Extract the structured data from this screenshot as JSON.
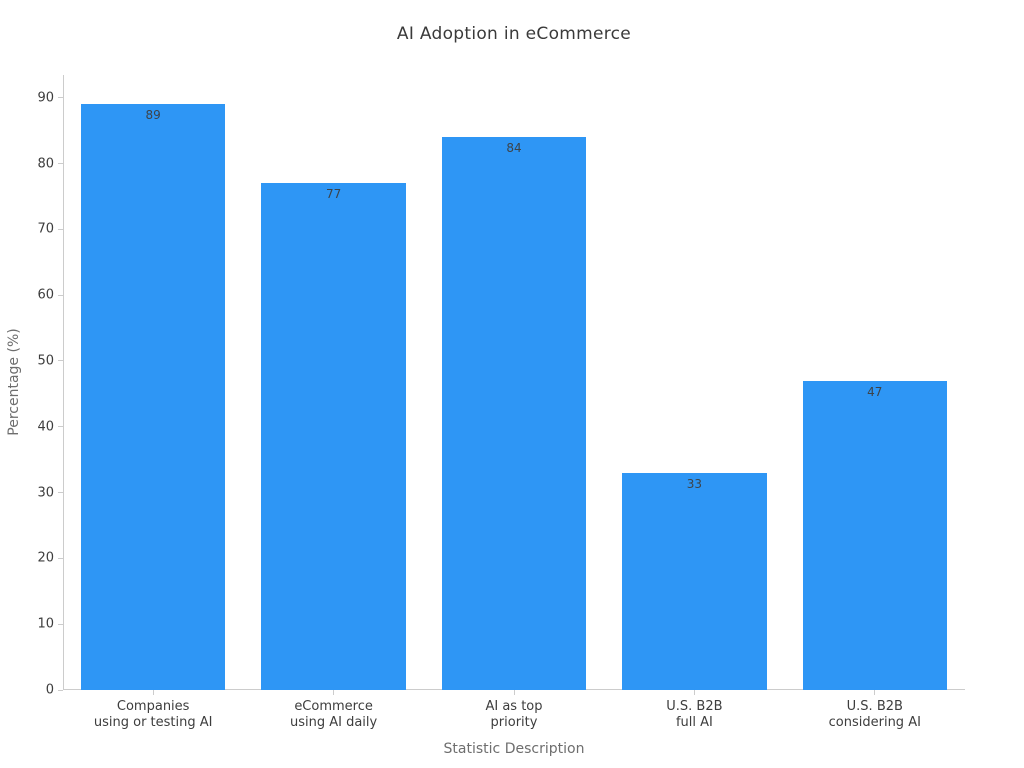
{
  "title": "AI Adoption in eCommerce",
  "colors": {
    "bar": "#2e96f5",
    "spine": "#cccccc",
    "tick_label": "#3d3d3d",
    "axis_label": "#6e6e6e",
    "value_label": "#3d4349",
    "background": "#ffffff"
  },
  "chart_data": {
    "type": "bar",
    "title": "AI Adoption in eCommerce",
    "xlabel": "Statistic Description",
    "ylabel": "Percentage (%)",
    "categories": [
      "Companies\nusing or testing AI",
      "eCommerce\nusing AI daily",
      "AI as top\npriority",
      "U.S. B2B\nfull AI",
      "U.S. B2B\nconsidering AI"
    ],
    "values": [
      89,
      77,
      84,
      33,
      47
    ],
    "value_labels": [
      "89",
      "77",
      "84",
      "33",
      "47"
    ],
    "yticks": [
      0,
      10,
      20,
      30,
      40,
      50,
      60,
      70,
      80,
      90
    ],
    "ylim": [
      0,
      93.45
    ],
    "bar_width_fraction": 0.8,
    "grid": false,
    "legend": null
  }
}
